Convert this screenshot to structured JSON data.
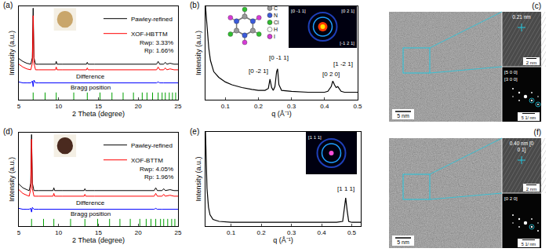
{
  "chart_data": [
    {
      "type": "line",
      "title": "(a)",
      "x_label": "2 Theta (degree)",
      "y_label": "Intensity (a.u.)",
      "xlim": [
        5,
        25
      ],
      "xticks": [
        5,
        10,
        15,
        20,
        25
      ],
      "ylim": [
        0,
        100
      ],
      "yticks": [],
      "tick_labels": "x",
      "grid": false,
      "legend": "upper right",
      "x": [
        5,
        5.5,
        6,
        6.5,
        6.7,
        6.8,
        6.9,
        7.1,
        7.5,
        8,
        8.5,
        9,
        9.6,
        9.7,
        9.8,
        10.5,
        11.5,
        12.5,
        13.5,
        13.6,
        13.7,
        14.5,
        16,
        17.5,
        19,
        20.5,
        21.5,
        22.3,
        22.5,
        22.7,
        23.2,
        23.4,
        23.6,
        24,
        24.5,
        25
      ],
      "series": [
        {
          "name": "Pawley-refined",
          "color": "#000000",
          "values": [
            44,
            41,
            39,
            38,
            45,
            98,
            45,
            38,
            38,
            38,
            38,
            38,
            38,
            41,
            38,
            38,
            38,
            38,
            38,
            40,
            38,
            38,
            38,
            38,
            38,
            38,
            38,
            38,
            41,
            38,
            38,
            40,
            38,
            39,
            38,
            38
          ]
        },
        {
          "name": "XOF-HBTTM",
          "color": "#ff0000",
          "values": [
            38,
            35,
            33,
            32,
            39,
            90,
            39,
            32,
            32,
            32,
            32,
            32,
            32,
            35,
            32,
            32,
            32,
            32,
            32,
            34,
            32,
            32,
            32,
            32,
            32,
            32,
            32,
            32,
            35,
            32,
            32,
            34,
            32,
            33,
            32,
            32
          ]
        },
        {
          "name": "Difference",
          "color": "#0000ff",
          "values": [
            19,
            18,
            18,
            18,
            20,
            14,
            21,
            18,
            18,
            18,
            18,
            18,
            18,
            18,
            18,
            18,
            18,
            18,
            18,
            18,
            18,
            18,
            18,
            18,
            18,
            18,
            18,
            18,
            19,
            18,
            18,
            18,
            18,
            18,
            18,
            18
          ]
        },
        {
          "name": "Bragg position",
          "color": "#00a000",
          "type": "scatter",
          "marker": "vertical-line",
          "x": [
            6.8,
            8.3,
            9.7,
            11.9,
            13.6,
            15.2,
            16.7,
            18.1,
            19.4,
            20.5,
            21.1,
            21.8,
            22.5,
            23.0,
            23.4,
            23.9,
            24.3,
            24.7
          ],
          "values": [
            3,
            3,
            3,
            3,
            3,
            3,
            3,
            3,
            3,
            3,
            3,
            3,
            3,
            3,
            3,
            3,
            3,
            3
          ]
        }
      ],
      "annotations": [
        "Rwp: 3.33%",
        "Rp: 1.66%"
      ]
    },
    {
      "type": "line",
      "title": "(b)",
      "x_label": "q (Å⁻¹)",
      "y_label": "Intensity (a.u.)",
      "xlim": [
        0.04,
        0.5
      ],
      "xticks": [
        0.1,
        0.2,
        0.3,
        0.4,
        0.5
      ],
      "ylim": [
        0,
        100
      ],
      "yticks": [],
      "tick_labels": "x",
      "grid": false,
      "color": "#000000",
      "x": [
        0.04,
        0.045,
        0.05,
        0.055,
        0.065,
        0.08,
        0.1,
        0.12,
        0.15,
        0.18,
        0.2,
        0.22,
        0.23,
        0.235,
        0.24,
        0.245,
        0.25,
        0.255,
        0.258,
        0.262,
        0.27,
        0.3,
        0.35,
        0.4,
        0.41,
        0.42,
        0.425,
        0.43,
        0.435,
        0.44,
        0.445,
        0.45,
        0.46,
        0.48,
        0.5
      ],
      "values": [
        100,
        75,
        55,
        42,
        30,
        24,
        19,
        16,
        13,
        11,
        10,
        10,
        12,
        22,
        13,
        10,
        14,
        30,
        33,
        16,
        10,
        9,
        8,
        8,
        9,
        14,
        20,
        16,
        13,
        14,
        11,
        9,
        8,
        8,
        8
      ],
      "annotations": [
        {
          "text": "[0 -2 1]",
          "x": 0.2,
          "y": 31
        },
        {
          "text": "[0 -1 1]",
          "x": 0.262,
          "y": 45
        },
        {
          "text": "[0 2 0]",
          "x": 0.42,
          "y": 27
        },
        {
          "text": "[1 -2 1]",
          "x": 0.455,
          "y": 38
        }
      ],
      "inset": {
        "elements": [
          "C",
          "N",
          "Cl",
          "H",
          "I"
        ],
        "pattern_labels": [
          "[0 -1 1]",
          "[0 2 1]",
          "[-1 2 1]"
        ]
      }
    },
    {
      "type": "line",
      "title": "(d)",
      "x_label": "2 Theta (degree)",
      "y_label": "Intensity (a.u.)",
      "xlim": [
        5,
        25
      ],
      "xticks": [
        5,
        10,
        15,
        20,
        25
      ],
      "ylim": [
        0,
        100
      ],
      "yticks": [],
      "tick_labels": "x",
      "grid": false,
      "legend": "upper right",
      "x": [
        5,
        5.5,
        6,
        6.3,
        6.5,
        6.6,
        6.7,
        6.9,
        7.5,
        8,
        8.5,
        9,
        9.3,
        9.4,
        9.5,
        10.5,
        11.5,
        12.5,
        13.2,
        13.3,
        13.4,
        14.5,
        16,
        17.5,
        19,
        20.5,
        21.5,
        22.0,
        22.2,
        22.4,
        23.0,
        23.2,
        23.4,
        24,
        24.5,
        25
      ],
      "series": [
        {
          "name": "Pawley-refined",
          "color": "#000000",
          "values": [
            45,
            41,
            39,
            38,
            46,
            98,
            46,
            38,
            38,
            38,
            38,
            38,
            38,
            41,
            38,
            38,
            38,
            38,
            38,
            40,
            38,
            38,
            38,
            38,
            38,
            38,
            38,
            38,
            41,
            38,
            38,
            40,
            38,
            39,
            38,
            38
          ]
        },
        {
          "name": "XOF-BTTM",
          "color": "#ff0000",
          "values": [
            39,
            35,
            33,
            32,
            40,
            93,
            40,
            32,
            32,
            32,
            32,
            32,
            32,
            35,
            32,
            32,
            32,
            32,
            32,
            34,
            32,
            32,
            32,
            32,
            32,
            32,
            32,
            32,
            35,
            32,
            32,
            34,
            32,
            33,
            32,
            32
          ]
        },
        {
          "name": "Difference",
          "color": "#0000ff",
          "values": [
            19,
            18,
            18,
            18,
            19,
            15,
            20,
            18,
            18,
            18,
            18,
            18,
            18,
            18,
            18,
            18,
            18,
            18,
            18,
            18,
            18,
            18,
            18,
            18,
            18,
            18,
            18,
            18,
            19,
            18,
            18,
            18,
            18,
            18,
            18,
            18
          ]
        },
        {
          "name": "Bragg position",
          "color": "#00a000",
          "type": "scatter",
          "marker": "vertical-line",
          "x": [
            6.6,
            8.1,
            9.4,
            11.5,
            13.3,
            14.9,
            16.4,
            17.7,
            19.0,
            20.2,
            21.0,
            21.6,
            22.2,
            22.8,
            23.2,
            23.7,
            24.2,
            24.6
          ],
          "values": [
            3,
            3,
            3,
            3,
            3,
            3,
            3,
            3,
            3,
            3,
            3,
            3,
            3,
            3,
            3,
            3,
            3,
            3
          ]
        }
      ],
      "annotations": [
        "Rwp: 4.05%",
        "Rp: 1.96%"
      ]
    },
    {
      "type": "line",
      "title": "(e)",
      "x_label": "q (Å⁻¹)",
      "y_label": "Intensity (a.u.)",
      "xlim": [
        0.015,
        0.53
      ],
      "xticks": [
        0.1,
        0.2,
        0.3,
        0.4,
        0.5
      ],
      "ylim": [
        0,
        100
      ],
      "yticks": [],
      "tick_labels": "x",
      "grid": false,
      "color": "#000000",
      "x": [
        0.015,
        0.02,
        0.025,
        0.03,
        0.04,
        0.06,
        0.1,
        0.2,
        0.3,
        0.4,
        0.45,
        0.47,
        0.475,
        0.48,
        0.485,
        0.49,
        0.5,
        0.53
      ],
      "values": [
        100,
        40,
        20,
        12,
        7,
        5,
        4,
        4,
        4,
        4,
        4,
        5,
        18,
        30,
        16,
        5,
        4,
        4
      ],
      "annotations": [
        {
          "text": "[1 1 1]",
          "x": 0.48,
          "y": 40
        }
      ],
      "inset": {
        "pattern_labels": [
          "[1 1 1]"
        ]
      }
    }
  ],
  "images": [
    {
      "title": "(c)",
      "scale_bar": "5 nm",
      "inset_hrtem": {
        "spacing": "0.21 nm",
        "scale_bar": "2 nm"
      },
      "inset_saed": {
        "labels": [
          "[5 0 0]",
          "[3 0 0]"
        ],
        "scale_bar": "5 1/ nm"
      }
    },
    {
      "title": "(f)",
      "scale_bar": "5 nm",
      "inset_hrtem": {
        "spacing": "0.40 nm [0 0 1]",
        "scale_bar": "2 nm"
      },
      "inset_saed": {
        "labels": [
          "[0 2 0]"
        ],
        "scale_bar": "5 1/ nm"
      }
    }
  ]
}
